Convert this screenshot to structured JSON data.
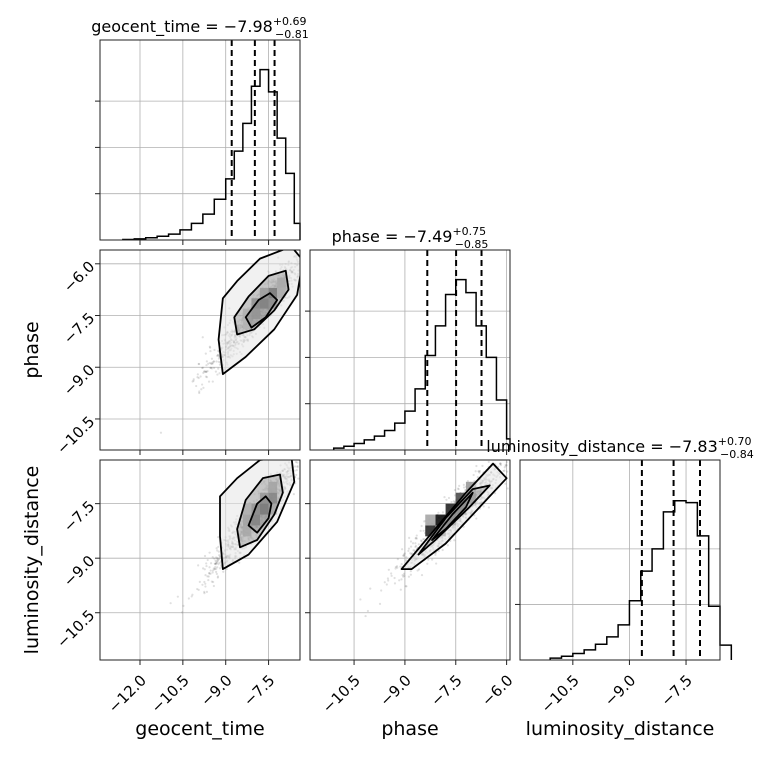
{
  "chart_data": {
    "type": "corner",
    "parameters": [
      "geocent_time",
      "phase",
      "luminosity_distance"
    ],
    "grid": true,
    "line_color": "#000000",
    "grid_color": "#b0b0b0",
    "scatter_color": "#555555",
    "histograms": [
      {
        "parameter": "geocent_time",
        "title_main": "geocent_time = −7.98",
        "err_plus": "+0.69",
        "err_minus": "−0.81",
        "xlim": [
          -13.4,
          -6.4
        ],
        "ymax": 1.0,
        "quantiles": [
          -8.79,
          -7.98,
          -7.29
        ],
        "bins": [
          [
            -12.6,
            -12.2,
            0.003
          ],
          [
            -12.2,
            -11.8,
            0.006
          ],
          [
            -11.8,
            -11.4,
            0.012
          ],
          [
            -11.4,
            -11.0,
            0.02
          ],
          [
            -11.0,
            -10.6,
            0.032
          ],
          [
            -10.6,
            -10.2,
            0.055
          ],
          [
            -10.2,
            -9.8,
            0.09
          ],
          [
            -9.8,
            -9.4,
            0.14
          ],
          [
            -9.4,
            -9.0,
            0.22
          ],
          [
            -9.0,
            -8.7,
            0.33
          ],
          [
            -8.7,
            -8.4,
            0.48
          ],
          [
            -8.4,
            -8.1,
            0.63
          ],
          [
            -8.1,
            -7.8,
            0.83
          ],
          [
            -7.8,
            -7.5,
            0.92
          ],
          [
            -7.5,
            -7.2,
            0.8
          ],
          [
            -7.2,
            -6.9,
            0.55
          ],
          [
            -6.9,
            -6.6,
            0.36
          ],
          [
            -6.6,
            -6.4,
            0.09
          ]
        ],
        "yticks": [
          0.25,
          0.5,
          0.75
        ]
      },
      {
        "parameter": "phase",
        "title_main": "phase = −7.49",
        "err_plus": "+0.75",
        "err_minus": "−0.85",
        "xlim": [
          -11.8,
          -5.9
        ],
        "ymax": 1.0,
        "quantiles": [
          -8.34,
          -7.49,
          -6.74
        ],
        "bins": [
          [
            -11.1,
            -10.8,
            0.01
          ],
          [
            -10.8,
            -10.5,
            0.02
          ],
          [
            -10.5,
            -10.2,
            0.035
          ],
          [
            -10.2,
            -9.9,
            0.055
          ],
          [
            -9.9,
            -9.6,
            0.075
          ],
          [
            -9.6,
            -9.3,
            0.105
          ],
          [
            -9.3,
            -9.0,
            0.145
          ],
          [
            -9.0,
            -8.7,
            0.21
          ],
          [
            -8.7,
            -8.4,
            0.33
          ],
          [
            -8.4,
            -8.1,
            0.51
          ],
          [
            -8.1,
            -7.8,
            0.67
          ],
          [
            -7.8,
            -7.5,
            0.84
          ],
          [
            -7.5,
            -7.2,
            0.92
          ],
          [
            -7.2,
            -6.9,
            0.85
          ],
          [
            -6.9,
            -6.6,
            0.67
          ],
          [
            -6.6,
            -6.3,
            0.5
          ],
          [
            -6.3,
            -6.0,
            0.27
          ],
          [
            -6.0,
            -5.9,
            0.06
          ]
        ],
        "yticks": [
          0.25,
          0.5,
          0.75
        ]
      },
      {
        "parameter": "luminosity_distance",
        "title_main": "luminosity_distance = −7.83",
        "err_plus": "+0.70",
        "err_minus": "−0.84",
        "xlim": [
          -11.9,
          -6.6
        ],
        "ymax": 1.0,
        "quantiles": [
          -8.67,
          -7.83,
          -7.13
        ],
        "bins": [
          [
            -11.1,
            -10.8,
            0.01
          ],
          [
            -10.8,
            -10.5,
            0.02
          ],
          [
            -10.5,
            -10.2,
            0.035
          ],
          [
            -10.2,
            -9.9,
            0.055
          ],
          [
            -9.9,
            -9.6,
            0.085
          ],
          [
            -9.6,
            -9.3,
            0.125
          ],
          [
            -9.3,
            -9.0,
            0.19
          ],
          [
            -9.0,
            -8.7,
            0.32
          ],
          [
            -8.7,
            -8.4,
            0.48
          ],
          [
            -8.4,
            -8.1,
            0.6
          ],
          [
            -8.1,
            -7.8,
            0.8
          ],
          [
            -7.8,
            -7.5,
            0.86
          ],
          [
            -7.5,
            -7.2,
            0.85
          ],
          [
            -7.2,
            -6.9,
            0.67
          ],
          [
            -6.9,
            -6.6,
            0.29
          ],
          [
            -6.6,
            -6.3,
            0.08
          ]
        ],
        "yticks": [
          0.3,
          0.6
        ]
      }
    ],
    "scatter_panels": [
      {
        "x_param": "geocent_time",
        "y_param": "phase",
        "xlim": [
          -13.4,
          -6.4
        ],
        "ylim": [
          -11.4,
          -5.6
        ],
        "center": [
          -7.9,
          -7.4
        ],
        "contours": [
          [
            [
              -9.1,
              -7.0
            ],
            [
              -8.6,
              -6.5
            ],
            [
              -7.8,
              -5.85
            ],
            [
              -6.7,
              -5.5
            ],
            [
              -6.3,
              -5.9
            ],
            [
              -6.5,
              -6.9
            ],
            [
              -7.3,
              -7.9
            ],
            [
              -8.3,
              -8.7
            ],
            [
              -9.1,
              -9.2
            ],
            [
              -9.25,
              -8.2
            ]
          ],
          [
            [
              -8.7,
              -7.55
            ],
            [
              -8.2,
              -6.95
            ],
            [
              -7.5,
              -6.35
            ],
            [
              -6.9,
              -6.2
            ],
            [
              -6.8,
              -6.75
            ],
            [
              -7.3,
              -7.35
            ],
            [
              -8.0,
              -7.9
            ],
            [
              -8.6,
              -8.05
            ]
          ],
          [
            [
              -8.3,
              -7.55
            ],
            [
              -7.85,
              -7.05
            ],
            [
              -7.45,
              -6.85
            ],
            [
              -7.2,
              -7.05
            ],
            [
              -7.6,
              -7.55
            ],
            [
              -8.1,
              -7.85
            ]
          ]
        ],
        "cells": [
          [
            -8.4,
            -7.9,
            0.25
          ],
          [
            -8.1,
            -7.6,
            0.45
          ],
          [
            -7.8,
            -7.3,
            0.85
          ],
          [
            -7.5,
            -7.0,
            1.0
          ],
          [
            -7.8,
            -7.0,
            0.55
          ],
          [
            -8.1,
            -7.3,
            0.7
          ],
          [
            -7.5,
            -7.3,
            0.6
          ],
          [
            -7.2,
            -6.7,
            0.4
          ],
          [
            -7.2,
            -7.0,
            0.35
          ],
          [
            -8.4,
            -7.6,
            0.3
          ]
        ]
      },
      {
        "x_param": "geocent_time",
        "y_param": "luminosity_distance",
        "xlim": [
          -13.4,
          -6.4
        ],
        "ylim": [
          -11.8,
          -6.3
        ],
        "center": [
          -7.9,
          -7.8
        ],
        "contours": [
          [
            [
              -9.2,
              -7.3
            ],
            [
              -8.6,
              -6.8
            ],
            [
              -7.8,
              -6.3
            ],
            [
              -6.7,
              -6.2
            ],
            [
              -6.6,
              -6.9
            ],
            [
              -7.2,
              -8.0
            ],
            [
              -8.2,
              -8.9
            ],
            [
              -9.1,
              -9.3
            ],
            [
              -9.2,
              -8.4
            ]
          ],
          [
            [
              -8.6,
              -8.2
            ],
            [
              -8.3,
              -7.4
            ],
            [
              -7.7,
              -6.8
            ],
            [
              -7.1,
              -6.7
            ],
            [
              -7.0,
              -7.2
            ],
            [
              -7.3,
              -7.8
            ],
            [
              -7.9,
              -8.5
            ],
            [
              -8.5,
              -8.7
            ]
          ],
          [
            [
              -8.2,
              -8.1
            ],
            [
              -7.9,
              -7.5
            ],
            [
              -7.6,
              -7.3
            ],
            [
              -7.4,
              -7.5
            ],
            [
              -7.5,
              -7.9
            ],
            [
              -7.9,
              -8.3
            ]
          ]
        ],
        "cells": [
          [
            -8.4,
            -8.4,
            0.4
          ],
          [
            -8.1,
            -8.1,
            0.8
          ],
          [
            -7.8,
            -7.8,
            1.0
          ],
          [
            -7.5,
            -7.5,
            0.85
          ],
          [
            -7.8,
            -7.5,
            0.6
          ],
          [
            -8.1,
            -7.8,
            0.65
          ],
          [
            -7.5,
            -7.8,
            0.45
          ],
          [
            -7.5,
            -7.2,
            0.45
          ],
          [
            -8.4,
            -7.8,
            0.3
          ],
          [
            -8.4,
            -8.1,
            0.45
          ]
        ]
      },
      {
        "x_param": "phase",
        "y_param": "luminosity_distance",
        "xlim": [
          -11.8,
          -5.9
        ],
        "ylim": [
          -11.8,
          -6.3
        ],
        "center": [
          -7.5,
          -7.8
        ],
        "contours": [
          [
            [
              -9.1,
              -9.3
            ],
            [
              -8.2,
              -8.3
            ],
            [
              -7.2,
              -7.2
            ],
            [
              -6.4,
              -6.4
            ],
            [
              -6.0,
              -6.8
            ],
            [
              -6.8,
              -7.6
            ],
            [
              -7.8,
              -8.6
            ],
            [
              -8.8,
              -9.3
            ]
          ],
          [
            [
              -8.6,
              -8.9
            ],
            [
              -7.8,
              -7.9
            ],
            [
              -7.0,
              -7.1
            ],
            [
              -6.5,
              -7.0
            ],
            [
              -7.1,
              -7.6
            ],
            [
              -8.1,
              -8.5
            ]
          ],
          [
            [
              -8.2,
              -8.5
            ],
            [
              -7.6,
              -7.8
            ],
            [
              -7.0,
              -7.2
            ],
            [
              -7.2,
              -7.6
            ],
            [
              -7.8,
              -8.2
            ]
          ]
        ],
        "cells": [
          [
            -8.4,
            -8.4,
            0.85
          ],
          [
            -8.1,
            -8.1,
            0.95
          ],
          [
            -7.8,
            -7.8,
            0.85
          ],
          [
            -7.5,
            -7.5,
            0.7
          ],
          [
            -7.2,
            -7.5,
            0.55
          ],
          [
            -7.8,
            -8.1,
            0.6
          ],
          [
            -8.1,
            -8.4,
            0.5
          ],
          [
            -7.5,
            -7.8,
            0.55
          ],
          [
            -7.2,
            -7.2,
            0.4
          ],
          [
            -8.4,
            -8.1,
            0.35
          ]
        ]
      }
    ],
    "axis_labels": {
      "x": [
        "geocent_time",
        "phase",
        "luminosity_distance"
      ],
      "y": [
        "phase",
        "luminosity_distance"
      ]
    },
    "x_tick_labels": [
      [
        "−12.0",
        "−10.5",
        "−9.0",
        "−7.5"
      ],
      [
        "−10.5",
        "−9.0",
        "−7.5",
        "−6.0"
      ],
      [
        "−10.5",
        "−9.0",
        "−7.5"
      ]
    ],
    "x_tick_values": [
      [
        -12.0,
        -10.5,
        -9.0,
        -7.5
      ],
      [
        -10.5,
        -9.0,
        -7.5,
        -6.0
      ],
      [
        -10.5,
        -9.0,
        -7.5
      ]
    ],
    "y_tick_labels": [
      [
        "−6.0",
        "−7.5",
        "−9.0",
        "−10.5"
      ],
      [
        "−7.5",
        "−9.0",
        "−10.5"
      ]
    ],
    "y_tick_values": [
      [
        -6.0,
        -7.5,
        -9.0,
        -10.5
      ],
      [
        -7.5,
        -9.0,
        -10.5
      ]
    ]
  }
}
